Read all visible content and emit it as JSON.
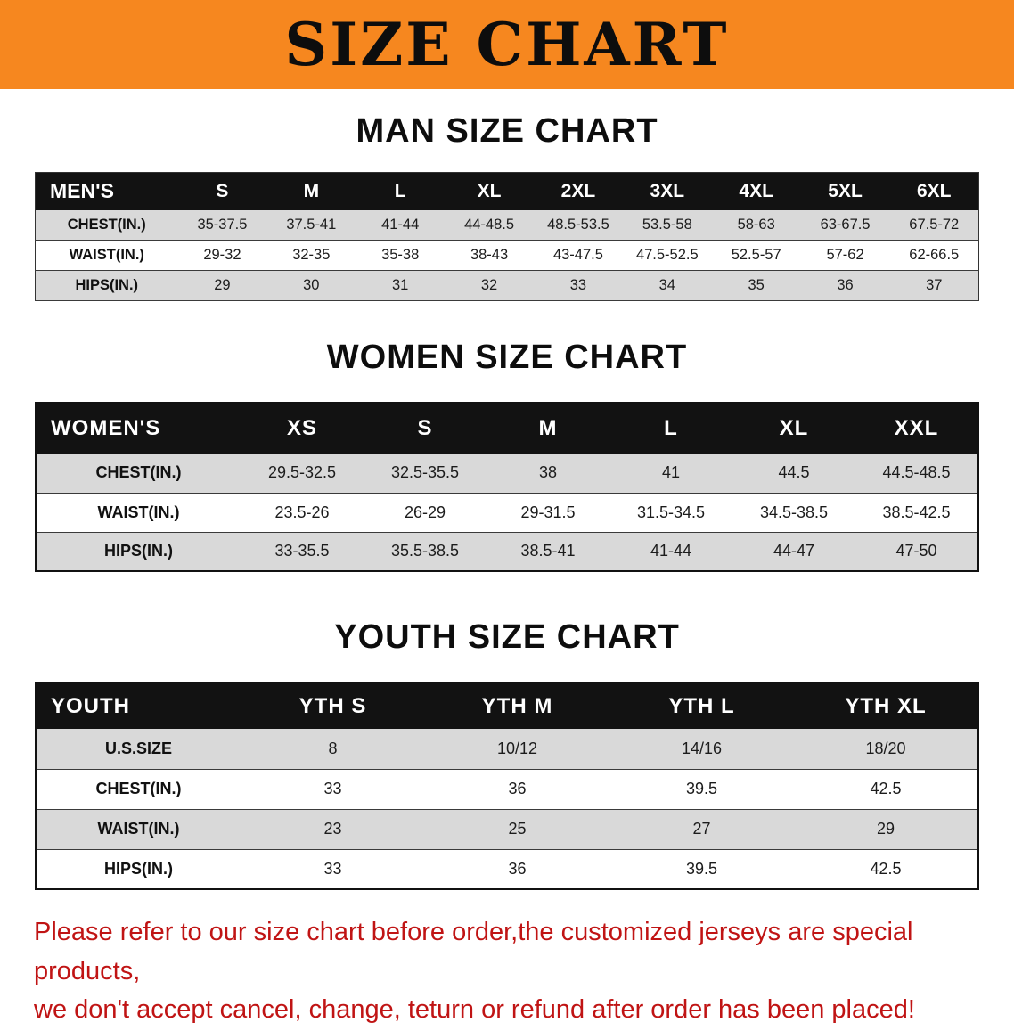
{
  "banner": {
    "title": "SIZE CHART",
    "bg_color": "#f6871f"
  },
  "colors": {
    "table_header_bg": "#121212",
    "row_alt_bg": "#d9d9d9",
    "disclaimer_text": "#c01414"
  },
  "sections": [
    {
      "heading": "MAN SIZE CHART",
      "table": {
        "header": [
          "MEN'S",
          "S",
          "M",
          "L",
          "XL",
          "2XL",
          "3XL",
          "4XL",
          "5XL",
          "6XL"
        ],
        "rows": [
          {
            "label": "CHEST(IN.)",
            "values": [
              "35-37.5",
              "37.5-41",
              "41-44",
              "44-48.5",
              "48.5-53.5",
              "53.5-58",
              "58-63",
              "63-67.5",
              "67.5-72"
            ]
          },
          {
            "label": "WAIST(IN.)",
            "values": [
              "29-32",
              "32-35",
              "35-38",
              "38-43",
              "43-47.5",
              "47.5-52.5",
              "52.5-57",
              "57-62",
              "62-66.5"
            ]
          },
          {
            "label": "HIPS(IN.)",
            "values": [
              "29",
              "30",
              "31",
              "32",
              "33",
              "34",
              "35",
              "36",
              "37"
            ]
          }
        ]
      }
    },
    {
      "heading": "WOMEN SIZE CHART",
      "table": {
        "header": [
          "WOMEN'S",
          "XS",
          "S",
          "M",
          "L",
          "XL",
          "XXL"
        ],
        "rows": [
          {
            "label": "CHEST(IN.)",
            "values": [
              "29.5-32.5",
              "32.5-35.5",
              "38",
              "41",
              "44.5",
              "44.5-48.5"
            ]
          },
          {
            "label": "WAIST(IN.)",
            "values": [
              "23.5-26",
              "26-29",
              "29-31.5",
              "31.5-34.5",
              "34.5-38.5",
              "38.5-42.5"
            ]
          },
          {
            "label": "HIPS(IN.)",
            "values": [
              "33-35.5",
              "35.5-38.5",
              "38.5-41",
              "41-44",
              "44-47",
              "47-50"
            ]
          }
        ]
      }
    },
    {
      "heading": "YOUTH SIZE CHART",
      "table": {
        "header": [
          "YOUTH",
          "YTH S",
          "YTH M",
          "YTH L",
          "YTH XL"
        ],
        "rows": [
          {
            "label": "U.S.SIZE",
            "values": [
              "8",
              "10/12",
              "14/16",
              "18/20"
            ]
          },
          {
            "label": "CHEST(IN.)",
            "values": [
              "33",
              "36",
              "39.5",
              "42.5"
            ]
          },
          {
            "label": "WAIST(IN.)",
            "values": [
              "23",
              "25",
              "27",
              "29"
            ]
          },
          {
            "label": "HIPS(IN.)",
            "values": [
              "33",
              "36",
              "39.5",
              "42.5"
            ]
          }
        ]
      }
    }
  ],
  "disclaimer": {
    "line1": "Please refer to our size chart before order,the customized jerseys are special products,",
    "line2": "we don't accept cancel, change, teturn or refund after order has been placed!"
  }
}
